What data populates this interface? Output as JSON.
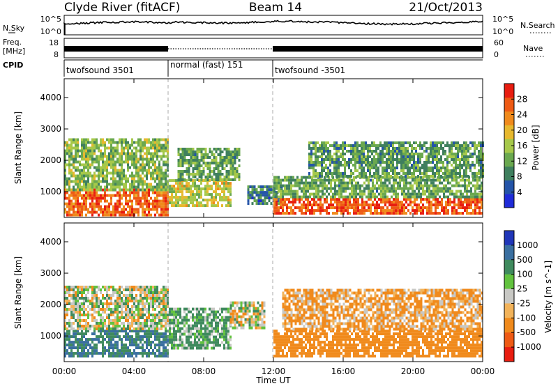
{
  "header": {
    "station": "Clyde River (fitACF)",
    "beam": "Beam 14",
    "date": "21/Oct/2013"
  },
  "summary_panel": {
    "left_label": "N.Sky",
    "right_label": "N.Search",
    "left_ticks": [
      "10^5",
      "10^0"
    ],
    "right_ticks": [
      "10^5",
      "10^0"
    ]
  },
  "freq_panel": {
    "left_label_line1": "Freq.",
    "left_label_line2": "[MHz]",
    "right_label": "Nave",
    "left_ticks": [
      "18",
      "8"
    ],
    "right_ticks": [
      "60",
      "0"
    ]
  },
  "cpid_panel": {
    "label": "CPID",
    "segments": [
      {
        "text": "twofsound 3501",
        "start_hour": 0,
        "end_hour": 6
      },
      {
        "text": "normal (fast) 151",
        "start_hour": 6,
        "end_hour": 12
      },
      {
        "text": "twofsound -3501",
        "start_hour": 12,
        "end_hour": 24
      }
    ]
  },
  "colors": {
    "power_scale": [
      "#1f2bd8",
      "#2454a8",
      "#3f7f5e",
      "#6aa84f",
      "#a6c84a",
      "#e7b82e",
      "#f08a1c",
      "#ee5a14",
      "#e81d10"
    ],
    "velocity_scale": [
      "#e81d10",
      "#ee5a14",
      "#f08a1c",
      "#f2b35a",
      "#c8c8c4",
      "#62c23e",
      "#3f8a5e",
      "#3a6fa0",
      "#2036b8"
    ]
  },
  "chart_data": [
    {
      "type": "heatmap",
      "name": "power",
      "xlabel": "",
      "ylabel": "Slant Range [km]",
      "xlim": [
        0,
        24
      ],
      "ylim": [
        180,
        4600
      ],
      "yticks": [
        1000,
        2000,
        3000,
        4000
      ],
      "colorbar": {
        "label": "Power [dB]",
        "range": [
          0,
          32
        ],
        "tick_values": [
          4,
          8,
          12,
          16,
          20,
          24,
          28
        ],
        "tick_labels": [
          "4",
          "8",
          "12",
          "16",
          "20",
          "24",
          "28"
        ]
      },
      "regions": [
        {
          "x": [
            0.0,
            6.0
          ],
          "y": [
            300,
            1100
          ],
          "level": 26
        },
        {
          "x": [
            0.0,
            6.0
          ],
          "y": [
            1100,
            2700
          ],
          "level": 14
        },
        {
          "x": [
            6.0,
            9.5
          ],
          "y": [
            600,
            1400
          ],
          "level": 17
        },
        {
          "x": [
            6.5,
            10.0
          ],
          "y": [
            1400,
            2400
          ],
          "level": 12
        },
        {
          "x": [
            10.5,
            12.5
          ],
          "y": [
            600,
            1200
          ],
          "level": 8
        },
        {
          "x": [
            12.0,
            24.0
          ],
          "y": [
            300,
            800
          ],
          "level": 27
        },
        {
          "x": [
            12.0,
            24.0
          ],
          "y": [
            800,
            1500
          ],
          "level": 12
        },
        {
          "x": [
            14.0,
            24.0
          ],
          "y": [
            1500,
            2600
          ],
          "level": 11
        }
      ]
    },
    {
      "type": "heatmap",
      "name": "velocity",
      "xlabel": "Time UT",
      "ylabel": "Slant Range [km]",
      "xlim": [
        0,
        24
      ],
      "ylim": [
        180,
        4600
      ],
      "yticks": [
        1000,
        2000,
        3000,
        4000
      ],
      "xticks": [
        0,
        4,
        8,
        12,
        16,
        20,
        24
      ],
      "xtick_labels": [
        "00:00",
        "04:00",
        "08:00",
        "12:00",
        "16:00",
        "20:00",
        "00:00"
      ],
      "colorbar": {
        "label": "Velocity [m s^-1]",
        "tick_labels": [
          "1000",
          "500",
          "100",
          "25",
          "-25",
          "-100",
          "-500",
          "-1000"
        ]
      },
      "regions": [
        {
          "x": [
            0.0,
            6.0
          ],
          "y": [
            400,
            1200
          ],
          "level": 300
        },
        {
          "x": [
            0.0,
            6.0
          ],
          "y": [
            1200,
            2600
          ],
          "level": 10
        },
        {
          "x": [
            6.0,
            9.5
          ],
          "y": [
            600,
            1900
          ],
          "level": 80
        },
        {
          "x": [
            9.5,
            11.5
          ],
          "y": [
            1300,
            2100
          ],
          "level": 0
        },
        {
          "x": [
            12.0,
            24.0
          ],
          "y": [
            400,
            1200
          ],
          "level": -200
        },
        {
          "x": [
            12.5,
            24.0
          ],
          "y": [
            1200,
            2500
          ],
          "level": -80
        }
      ]
    }
  ]
}
